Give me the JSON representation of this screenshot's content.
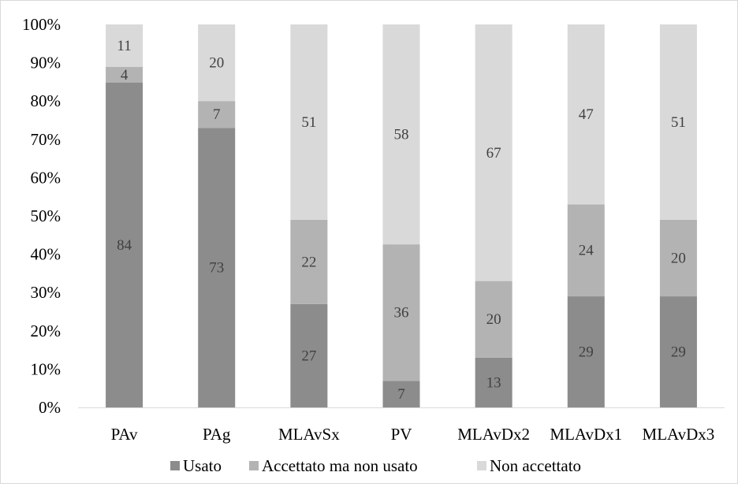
{
  "chart_data": {
    "type": "bar",
    "stacked": true,
    "percent": true,
    "title": "",
    "xlabel": "",
    "ylabel": "",
    "ylim": [
      0,
      100
    ],
    "yticks": [
      "0%",
      "10%",
      "20%",
      "30%",
      "40%",
      "50%",
      "60%",
      "70%",
      "80%",
      "90%",
      "100%"
    ],
    "categories": [
      "PAv",
      "PAg",
      "MLAvSx",
      "PV",
      "MLAvDx2",
      "MLAvDx1",
      "MLAvDx3"
    ],
    "series": [
      {
        "name": "Usato",
        "color": "#8c8c8c",
        "values": [
          84,
          73,
          27,
          7,
          13,
          29,
          29
        ]
      },
      {
        "name": "Accettato ma non usato",
        "color": "#b3b3b3",
        "values": [
          4,
          7,
          22,
          36,
          20,
          24,
          20
        ]
      },
      {
        "name": "Non accettato",
        "color": "#d9d9d9",
        "values": [
          11,
          20,
          51,
          58,
          67,
          47,
          51
        ]
      }
    ],
    "grid": false,
    "legend": "bottom"
  }
}
